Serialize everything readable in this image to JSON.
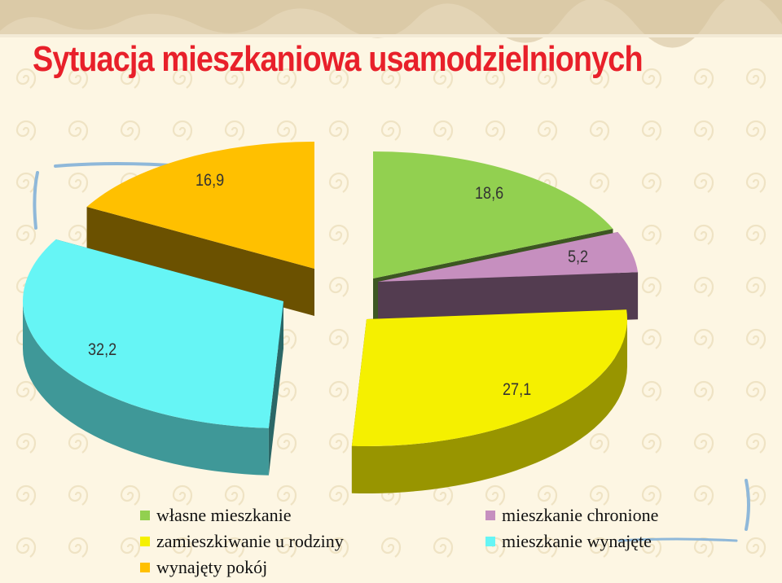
{
  "slide": {
    "title": "Sytuacja mieszkaniowa usamodzielnionych"
  },
  "chart_data": {
    "type": "pie",
    "title": "",
    "slices": [
      {
        "name": "własne mieszkanie",
        "value": 18.6,
        "label": "18,6",
        "color": "#92d050"
      },
      {
        "name": "mieszkanie chronione",
        "value": 5.2,
        "label": "5,2",
        "color": "#c68fbf"
      },
      {
        "name": "zamieszkiwanie u rodziny",
        "value": 27.1,
        "label": "27,1",
        "color": "#f5f000"
      },
      {
        "name": "mieszkanie wynajęte",
        "value": 32.2,
        "label": "32,2",
        "color": "#66f5f5"
      },
      {
        "name": "wynajęty pokój",
        "value": 16.9,
        "label": "16,9",
        "color": "#ffc000"
      }
    ],
    "legend": {
      "position": "bottom",
      "items": [
        {
          "label": "własne mieszkanie",
          "color": "#92d050"
        },
        {
          "label": "mieszkanie chronione",
          "color": "#c68fbf"
        },
        {
          "label": "zamieszkiwanie u rodziny",
          "color": "#f5f000"
        },
        {
          "label": "mieszkanie wynajęte",
          "color": "#66f5f5"
        },
        {
          "label": "wynajęty pokój",
          "color": "#ffc000"
        }
      ]
    }
  }
}
